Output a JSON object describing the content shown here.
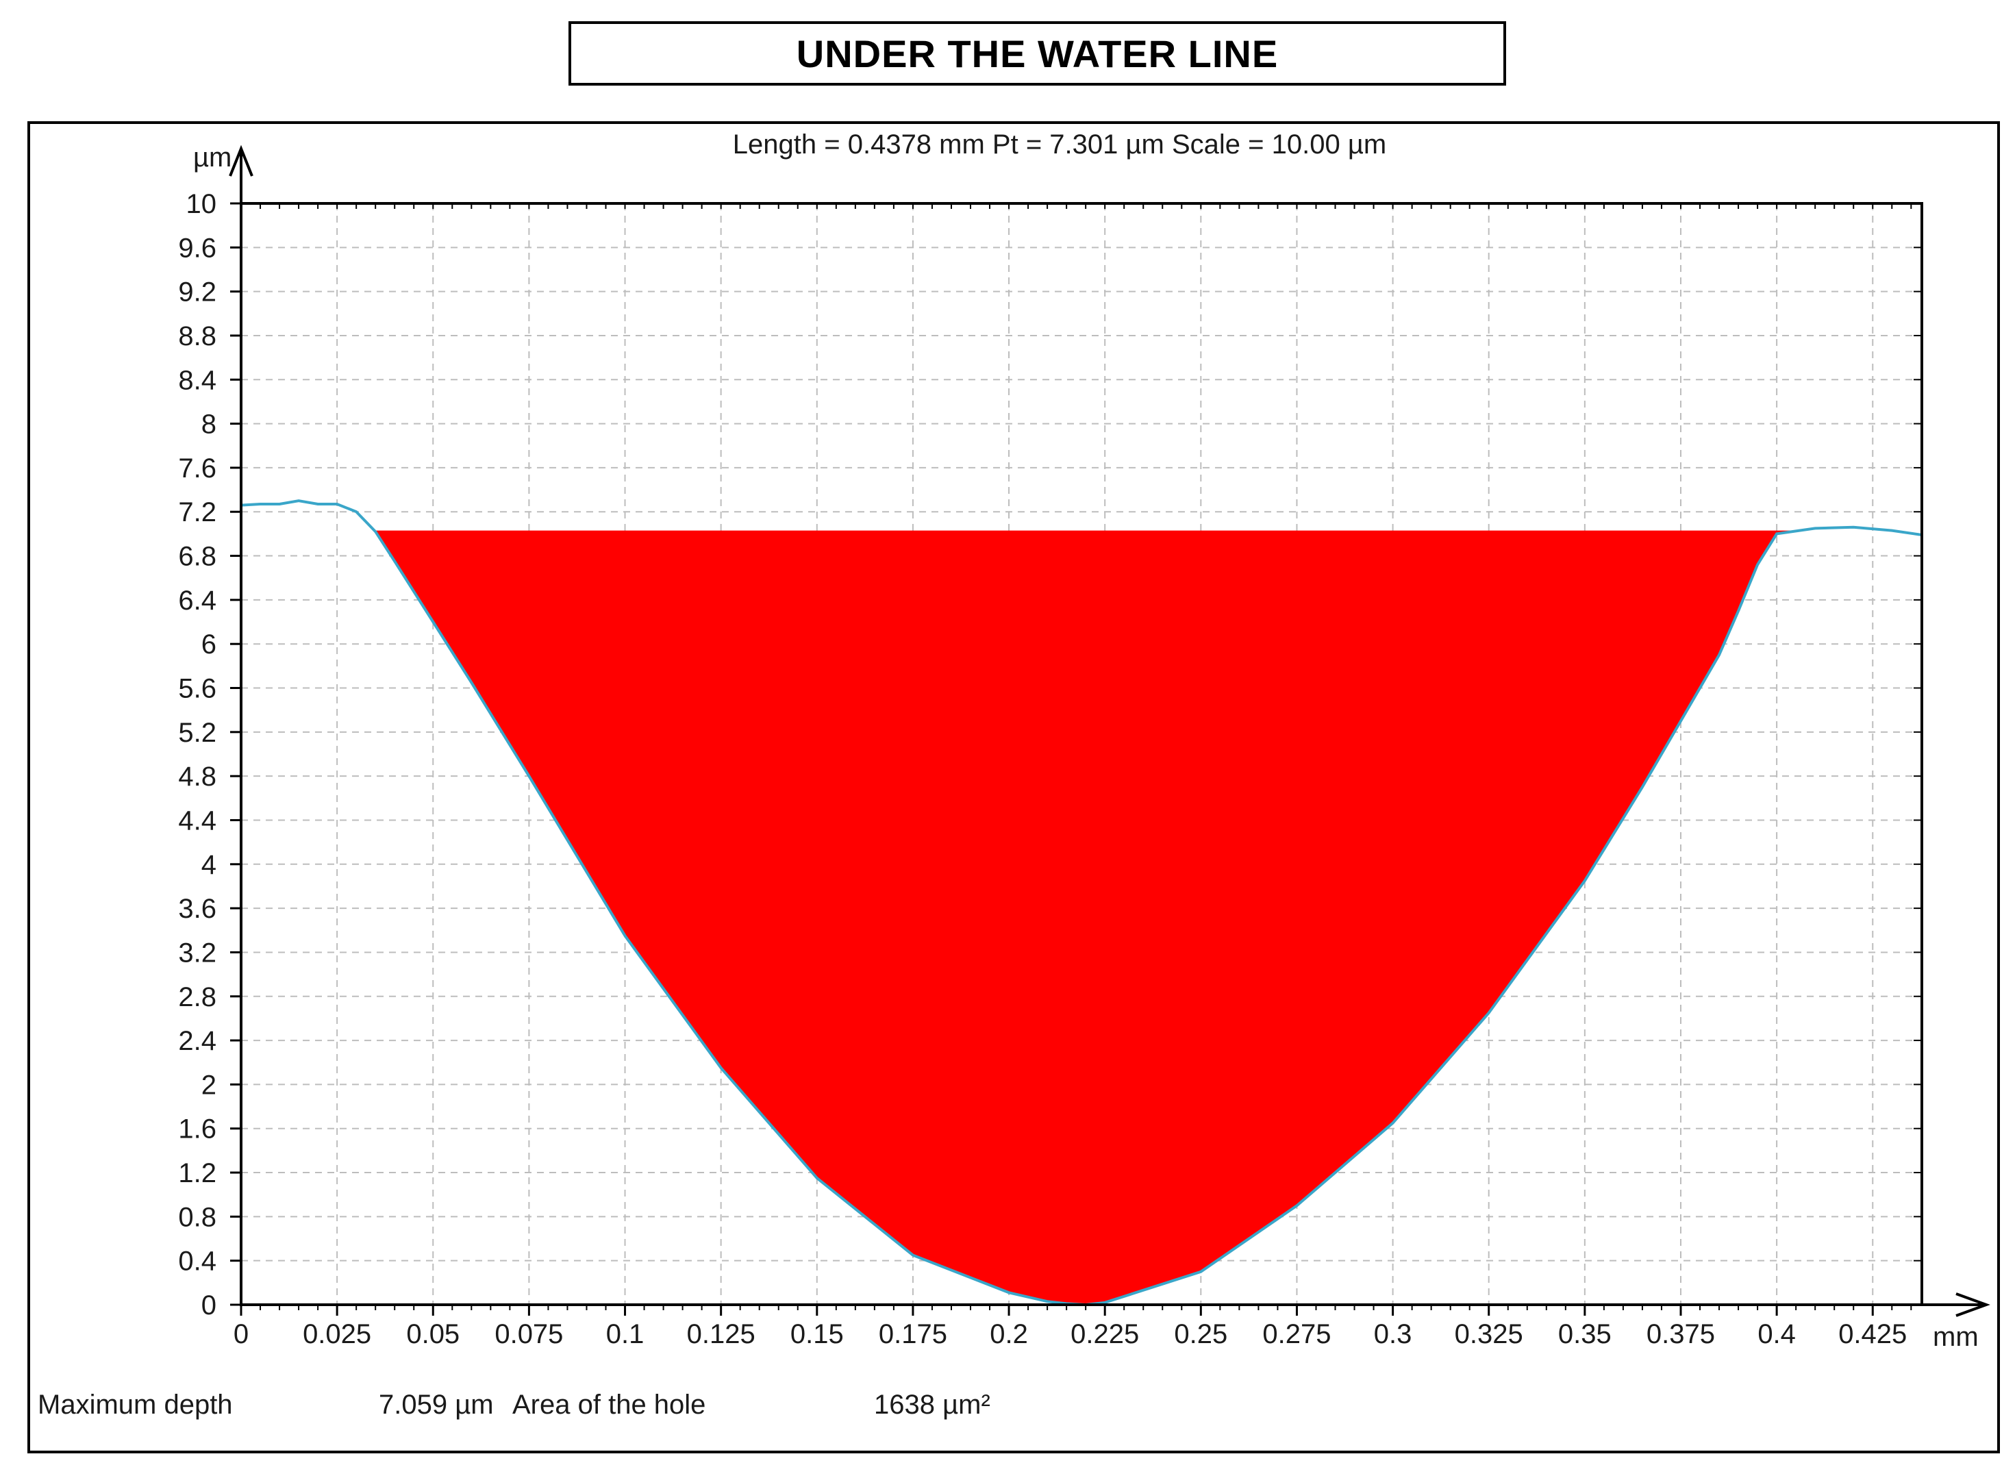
{
  "title": "UNDER THE WATER LINE",
  "chart_data": {
    "type": "area",
    "subtitle": "Length = 0.4378 mm  Pt = 7.301 µm  Scale = 10.00 µm",
    "y_unit": "µm",
    "x_unit": "mm",
    "xlim": [
      0,
      0.4378
    ],
    "ylim": [
      0,
      10
    ],
    "grid": true,
    "x_ticks": [
      "0",
      "0.025",
      "0.05",
      "0.075",
      "0.1",
      "0.125",
      "0.15",
      "0.175",
      "0.2",
      "0.225",
      "0.25",
      "0.275",
      "0.3",
      "0.325",
      "0.35",
      "0.375",
      "0.4",
      "0.425"
    ],
    "y_ticks": [
      "10",
      "9.6",
      "9.2",
      "8.8",
      "8.4",
      "8",
      "7.6",
      "7.2",
      "6.8",
      "6.4",
      "6",
      "5.6",
      "5.2",
      "4.8",
      "4.4",
      "4",
      "3.6",
      "3.2",
      "2.8",
      "2.4",
      "2",
      "1.6",
      "1.2",
      "0.8",
      "0.4",
      "0"
    ],
    "water_line": 7.03,
    "profile": {
      "x": [
        0,
        0.005,
        0.01,
        0.015,
        0.02,
        0.025,
        0.03,
        0.035,
        0.04,
        0.05,
        0.06,
        0.075,
        0.1,
        0.125,
        0.15,
        0.175,
        0.2,
        0.21,
        0.215,
        0.22,
        0.225,
        0.25,
        0.275,
        0.3,
        0.325,
        0.35,
        0.365,
        0.375,
        0.385,
        0.39,
        0.395,
        0.4,
        0.41,
        0.42,
        0.43,
        0.4378
      ],
      "y": [
        7.26,
        7.27,
        7.27,
        7.3,
        7.27,
        7.27,
        7.2,
        7.02,
        6.75,
        6.2,
        5.65,
        4.8,
        3.35,
        2.15,
        1.15,
        0.45,
        0.11,
        0.03,
        0.01,
        0.0,
        0.02,
        0.3,
        0.9,
        1.65,
        2.65,
        3.85,
        4.7,
        5.3,
        5.9,
        6.3,
        6.72,
        7.0,
        7.05,
        7.06,
        7.03,
        6.99
      ]
    },
    "colors": {
      "fill": "#ff0000",
      "profile_line": "#3aa6c9",
      "grid": "#bdbdbd"
    },
    "footer": {
      "max_depth_label": "Maximum depth",
      "max_depth_value": "7.059 µm",
      "area_label": "Area of the hole",
      "area_value": "1638 µm²"
    }
  }
}
